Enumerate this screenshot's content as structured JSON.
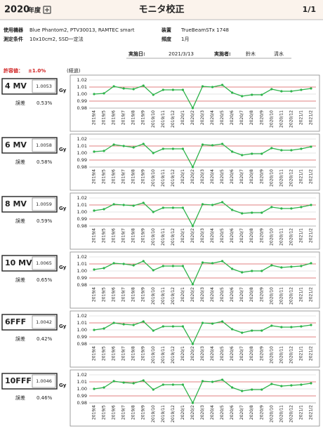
{
  "header": {
    "year": "2020",
    "year_suffix": "年度",
    "title": "モニタ校正",
    "page": "1/1"
  },
  "info": {
    "equipment_label": "使用機器",
    "equipment": "Blue Phantom2, PTV30013, RAMTEC smart",
    "device_label": "装置",
    "device": "TrueBeamSTx 1748",
    "condition_label": "測定条件",
    "condition": "10x10cm2, SSD一定法",
    "frequency_label": "頻度",
    "frequency": "1月",
    "date_label": "実施日:",
    "date": "2021/3/13",
    "operator_label": "実施者:",
    "operators": [
      "鈴木",
      "清水"
    ]
  },
  "tolerance": {
    "label": "許容値：",
    "value": "±1.0%"
  },
  "progress_label": "(経過)",
  "panels": [
    {
      "beam": "4 MV",
      "value": 1.0053,
      "unit": "Gy",
      "error_label": "誤差",
      "error": "0.53%"
    },
    {
      "beam": "6 MV",
      "value": 1.0058,
      "unit": "Gy",
      "error_label": "誤差",
      "error": "0.58%"
    },
    {
      "beam": "8 MV",
      "value": 1.0059,
      "unit": "Gy",
      "error_label": "誤差",
      "error": "0.59%"
    },
    {
      "beam": "10 MV",
      "value": 1.0065,
      "unit": "Gy",
      "error_label": "誤差",
      "error": "0.65%"
    },
    {
      "beam": "6FFF",
      "value": 1.0042,
      "unit": "Gy",
      "error_label": "誤差",
      "error": "0.42%"
    },
    {
      "beam": "10FFF",
      "value": 1.0046,
      "unit": "Gy",
      "error_label": "誤差",
      "error": "0.46%"
    }
  ],
  "chart_data": [
    {
      "type": "line",
      "categories": [
        "2019/4",
        "2019/5",
        "2019/6",
        "2019/7",
        "2019/8",
        "2019/9",
        "2019/10",
        "2019/11",
        "2019/12",
        "2020/1",
        "2020/2",
        "2020/3",
        "2020/4",
        "2020/5",
        "2020/6",
        "2020/7",
        "2020/8",
        "2020/9",
        "2020/10",
        "2020/11",
        "2020/12",
        "2021/1",
        "2021/2"
      ],
      "values": [
        1.0,
        1.001,
        1.011,
        1.008,
        1.007,
        1.012,
        0.999,
        1.006,
        1.006,
        1.006,
        0.98,
        1.011,
        1.01,
        1.013,
        1.002,
        0.997,
        0.999,
        0.999,
        1.007,
        1.004,
        1.004,
        1.006,
        1.008
      ],
      "color": "#2db34a",
      "ylim": [
        0.98,
        1.02
      ],
      "yticks": [
        0.98,
        0.99,
        {
          "value": 1,
          "label": "1.00"
        },
        1.01,
        1.02
      ],
      "limits": [
        0.99,
        1.01
      ],
      "limit_color": "#e06060",
      "grid": true
    },
    {
      "type": "line",
      "categories": [
        "2019/4",
        "2019/5",
        "2019/6",
        "2019/7",
        "2019/8",
        "2019/9",
        "2019/10",
        "2019/11",
        "2019/12",
        "2020/1",
        "2020/2",
        "2020/3",
        "2020/4",
        "2020/5",
        "2020/6",
        "2020/7",
        "2020/8",
        "2020/9",
        "2020/10",
        "2020/11",
        "2020/12",
        "2021/1",
        "2021/2"
      ],
      "values": [
        1.002,
        1.003,
        1.012,
        1.01,
        1.008,
        1.013,
        1.0,
        1.006,
        1.006,
        1.006,
        0.98,
        1.012,
        1.011,
        1.013,
        1.002,
        0.997,
        0.999,
        0.999,
        1.007,
        1.004,
        1.004,
        1.006,
        1.009
      ],
      "color": "#2db34a",
      "ylim": [
        0.98,
        1.02
      ],
      "yticks": [
        0.98,
        0.99,
        {
          "value": 1,
          "label": "1.00"
        },
        1.01,
        1.02
      ],
      "limits": [
        0.99,
        1.01
      ],
      "limit_color": "#e06060",
      "grid": true
    },
    {
      "type": "line",
      "categories": [
        "2019/4",
        "2019/5",
        "2019/6",
        "2019/7",
        "2019/8",
        "2019/9",
        "2019/10",
        "2019/11",
        "2019/12",
        "2020/1",
        "2020/2",
        "2020/3",
        "2020/4",
        "2020/5",
        "2020/6",
        "2020/7",
        "2020/8",
        "2020/9",
        "2020/10",
        "2020/11",
        "2020/12",
        "2021/1",
        "2021/2"
      ],
      "values": [
        1.002,
        1.004,
        1.011,
        1.01,
        1.009,
        1.013,
        1.0,
        1.006,
        1.006,
        1.006,
        0.98,
        1.011,
        1.01,
        1.014,
        1.003,
        0.998,
        0.999,
        0.999,
        1.007,
        1.005,
        1.005,
        1.007,
        1.01
      ],
      "color": "#2db34a",
      "ylim": [
        0.98,
        1.02
      ],
      "yticks": [
        0.98,
        0.99,
        {
          "value": 1,
          "label": "1.00"
        },
        1.01,
        1.02
      ],
      "limits": [
        0.99,
        1.01
      ],
      "limit_color": "#e06060",
      "grid": true
    },
    {
      "type": "line",
      "categories": [
        "2019/4",
        "2019/5",
        "2019/6",
        "2019/7",
        "2019/8",
        "2019/9",
        "2019/10",
        "2019/11",
        "2019/12",
        "2020/1",
        "2020/2",
        "2020/3",
        "2020/4",
        "2020/5",
        "2020/6",
        "2020/7",
        "2020/8",
        "2020/9",
        "2020/10",
        "2020/11",
        "2020/12",
        "2021/1",
        "2021/2"
      ],
      "values": [
        1.002,
        1.004,
        1.011,
        1.01,
        1.008,
        1.014,
        1.001,
        1.007,
        1.007,
        1.007,
        0.981,
        1.012,
        1.011,
        1.014,
        1.003,
        0.998,
        1.0,
        1.0,
        1.008,
        1.005,
        1.006,
        1.007,
        1.011
      ],
      "color": "#2db34a",
      "ylim": [
        0.98,
        1.02
      ],
      "yticks": [
        0.98,
        0.99,
        {
          "value": 1,
          "label": "1.00"
        },
        1.01,
        1.02
      ],
      "limits": [
        0.99,
        1.01
      ],
      "limit_color": "#e06060",
      "grid": true
    },
    {
      "type": "line",
      "categories": [
        "2019/4",
        "2019/5",
        "2019/6",
        "2019/7",
        "2019/8",
        "2019/9",
        "2019/10",
        "2019/11",
        "2019/12",
        "2020/1",
        "2020/2",
        "2020/3",
        "2020/4",
        "2020/5",
        "2020/6",
        "2020/7",
        "2020/8",
        "2020/9",
        "2020/10",
        "2020/11",
        "2020/12",
        "2021/1",
        "2021/2"
      ],
      "values": [
        1.0,
        1.002,
        1.01,
        1.008,
        1.007,
        1.012,
        0.999,
        1.005,
        1.005,
        1.005,
        0.98,
        1.01,
        1.009,
        1.012,
        1.001,
        0.996,
        0.999,
        0.999,
        1.006,
        1.004,
        1.004,
        1.005,
        1.007
      ],
      "color": "#2db34a",
      "ylim": [
        0.98,
        1.02
      ],
      "yticks": [
        0.98,
        0.99,
        {
          "value": 1,
          "label": "1.00"
        },
        1.01,
        1.02
      ],
      "limits": [
        0.99,
        1.01
      ],
      "limit_color": "#e06060",
      "grid": true
    },
    {
      "type": "line",
      "categories": [
        "2019/4",
        "2019/5",
        "2019/6",
        "2019/7",
        "2019/8",
        "2019/9",
        "2019/10",
        "2019/11",
        "2019/12",
        "2020/1",
        "2020/2",
        "2020/3",
        "2020/4",
        "2020/5",
        "2020/6",
        "2020/7",
        "2020/8",
        "2020/9",
        "2020/10",
        "2020/11",
        "2020/12",
        "2021/1",
        "2021/2"
      ],
      "values": [
        1.0,
        1.002,
        1.011,
        1.009,
        1.008,
        1.012,
        0.999,
        1.006,
        1.006,
        1.006,
        0.98,
        1.011,
        1.01,
        1.013,
        1.002,
        0.997,
        0.999,
        0.999,
        1.007,
        1.004,
        1.005,
        1.006,
        1.008
      ],
      "color": "#2db34a",
      "ylim": [
        0.98,
        1.02
      ],
      "yticks": [
        0.98,
        0.99,
        {
          "value": 1,
          "label": "1.00"
        },
        1.01,
        1.02
      ],
      "limits": [
        0.99,
        1.01
      ],
      "limit_color": "#e06060",
      "grid": true
    }
  ]
}
